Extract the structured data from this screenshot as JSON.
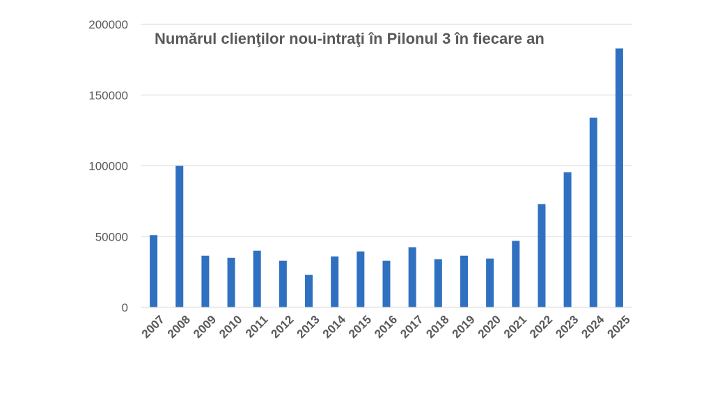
{
  "chart_data": {
    "type": "bar",
    "title": "Numărul clienţilor nou-intraţi în Pilonul 3 în fiecare an",
    "categories": [
      "2007",
      "2008",
      "2009",
      "2010",
      "2011",
      "2012",
      "2013",
      "2014",
      "2015",
      "2016",
      "2017",
      "2018",
      "2019",
      "2020",
      "2021",
      "2022",
      "2023",
      "2024",
      "2025"
    ],
    "series": [
      {
        "values": [
          51000,
          100000,
          36500,
          35000,
          40000,
          33000,
          23000,
          36000,
          39500,
          33000,
          42500,
          34000,
          36500,
          34500,
          47000,
          73000,
          95500,
          134000,
          183000
        ]
      }
    ],
    "ylim": [
      0,
      200000
    ],
    "yticks": [
      0,
      50000,
      100000,
      150000,
      200000
    ],
    "ytick_labels": [
      "0",
      "50000",
      "100000",
      "150000",
      "200000"
    ],
    "xlabel": "",
    "ylabel": "",
    "grid": true,
    "bar_color": "#3070c0",
    "legend": "none"
  }
}
